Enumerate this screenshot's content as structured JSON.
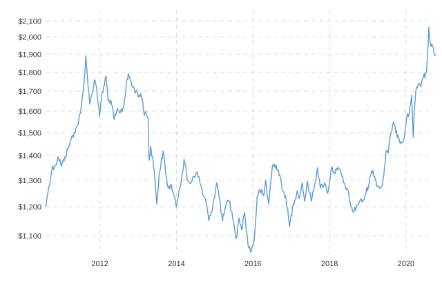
{
  "chart_data": {
    "type": "line",
    "title": "",
    "xlabel": "",
    "ylabel": "",
    "y_scale": "log",
    "ylim": [
      1040,
      2110
    ],
    "xlim": [
      "2010-08-01",
      "2020-07-31"
    ],
    "grid": {
      "horizontal": true,
      "vertical": true,
      "style": "dashed"
    },
    "legend": "none",
    "line_color": "#5b9bd5",
    "y_ticks": [
      1100,
      1200,
      1300,
      1400,
      1500,
      1600,
      1700,
      1800,
      1900,
      2000,
      2100
    ],
    "y_tick_labels": [
      "$1,100",
      "$1,200",
      "$1,300",
      "$1,400",
      "$1,500",
      "$1,600",
      "$1,700",
      "$1,800",
      "$1,900",
      "$2,000",
      "$2,100"
    ],
    "x_ticks": [
      "2012-01-01",
      "2014-01-01",
      "2016-01-01",
      "2018-01-01",
      "2020-01-01"
    ],
    "x_tick_labels": [
      "2012",
      "2014",
      "2016",
      "2018",
      "2020"
    ],
    "series": [
      {
        "x": [
          "2010-08-01",
          "2010-09-01",
          "2010-10-01",
          "2010-11-01",
          "2010-12-01",
          "2011-01-01",
          "2011-02-01",
          "2011-03-01",
          "2011-04-01",
          "2011-05-01",
          "2011-06-01",
          "2011-07-01",
          "2011-08-01",
          "2011-08-20",
          "2011-09-01",
          "2011-09-26",
          "2011-10-15",
          "2011-11-10",
          "2011-12-01",
          "2011-12-29",
          "2012-01-15",
          "2012-02-29",
          "2012-03-20",
          "2012-04-15",
          "2012-05-16",
          "2012-06-10",
          "2012-07-10",
          "2012-08-15",
          "2012-09-15",
          "2012-10-05",
          "2012-11-10",
          "2012-12-10",
          "2013-01-10",
          "2013-02-10",
          "2013-02-28",
          "2013-03-15",
          "2013-04-05",
          "2013-04-15",
          "2013-05-01",
          "2013-05-20",
          "2013-06-10",
          "2013-06-28",
          "2013-07-20",
          "2013-08-27",
          "2013-09-20",
          "2013-10-15",
          "2013-11-15",
          "2013-12-30",
          "2014-01-25",
          "2014-02-28",
          "2014-03-15",
          "2014-04-15",
          "2014-05-20",
          "2014-06-10",
          "2014-07-10",
          "2014-08-10",
          "2014-09-15",
          "2014-10-10",
          "2014-11-06",
          "2014-11-30",
          "2015-01-22",
          "2015-02-15",
          "2015-03-17",
          "2015-04-15",
          "2015-05-18",
          "2015-06-15",
          "2015-07-24",
          "2015-08-24",
          "2015-09-15",
          "2015-10-14",
          "2015-11-15",
          "2015-12-17",
          "2016-01-15",
          "2016-02-11",
          "2016-03-10",
          "2016-04-15",
          "2016-05-01",
          "2016-05-30",
          "2016-07-06",
          "2016-08-10",
          "2016-09-15",
          "2016-10-06",
          "2016-11-10",
          "2016-12-15",
          "2017-01-20",
          "2017-02-27",
          "2017-03-15",
          "2017-04-17",
          "2017-05-09",
          "2017-06-06",
          "2017-07-10",
          "2017-08-10",
          "2017-09-08",
          "2017-10-05",
          "2017-11-15",
          "2017-12-12",
          "2018-01-25",
          "2018-02-15",
          "2018-03-15",
          "2018-04-15",
          "2018-05-15",
          "2018-06-15",
          "2018-07-15",
          "2018-08-16",
          "2018-09-15",
          "2018-10-15",
          "2018-11-15",
          "2018-12-15",
          "2019-01-31",
          "2019-02-20",
          "2019-03-15",
          "2019-04-23",
          "2019-05-20",
          "2019-06-10",
          "2019-06-25",
          "2019-07-15",
          "2019-08-10",
          "2019-09-04",
          "2019-09-25",
          "2019-10-15",
          "2019-11-12",
          "2019-12-10",
          "2020-01-08",
          "2020-02-01",
          "2020-02-24",
          "2020-03-10",
          "2020-03-19",
          "2020-04-10",
          "2020-05-15",
          "2020-06-15",
          "2020-07-15",
          "2020-08-06",
          "2020-08-20",
          "2020-09-10",
          "2020-09-25",
          "2020-10-10"
        ],
        "y": [
          1200,
          1275,
          1345,
          1360,
          1395,
          1355,
          1395,
          1425,
          1470,
          1500,
          1535,
          1590,
          1730,
          1890,
          1800,
          1635,
          1680,
          1760,
          1720,
          1575,
          1660,
          1780,
          1650,
          1655,
          1560,
          1600,
          1590,
          1620,
          1760,
          1780,
          1720,
          1700,
          1680,
          1660,
          1580,
          1600,
          1570,
          1380,
          1440,
          1390,
          1300,
          1210,
          1320,
          1420,
          1330,
          1270,
          1280,
          1200,
          1260,
          1330,
          1385,
          1300,
          1290,
          1315,
          1330,
          1300,
          1240,
          1220,
          1150,
          1180,
          1290,
          1230,
          1150,
          1200,
          1220,
          1180,
          1090,
          1160,
          1120,
          1180,
          1070,
          1050,
          1090,
          1240,
          1260,
          1240,
          1300,
          1210,
          1360,
          1360,
          1320,
          1260,
          1240,
          1130,
          1210,
          1260,
          1230,
          1290,
          1220,
          1295,
          1220,
          1280,
          1350,
          1270,
          1290,
          1250,
          1355,
          1330,
          1340,
          1340,
          1290,
          1270,
          1220,
          1180,
          1200,
          1220,
          1220,
          1250,
          1320,
          1340,
          1300,
          1270,
          1280,
          1350,
          1420,
          1410,
          1500,
          1550,
          1500,
          1490,
          1460,
          1470,
          1570,
          1590,
          1680,
          1480,
          1600,
          1720,
          1730,
          1770,
          1800,
          2060,
          1960,
          1950,
          1900,
          1900
        ]
      }
    ]
  }
}
